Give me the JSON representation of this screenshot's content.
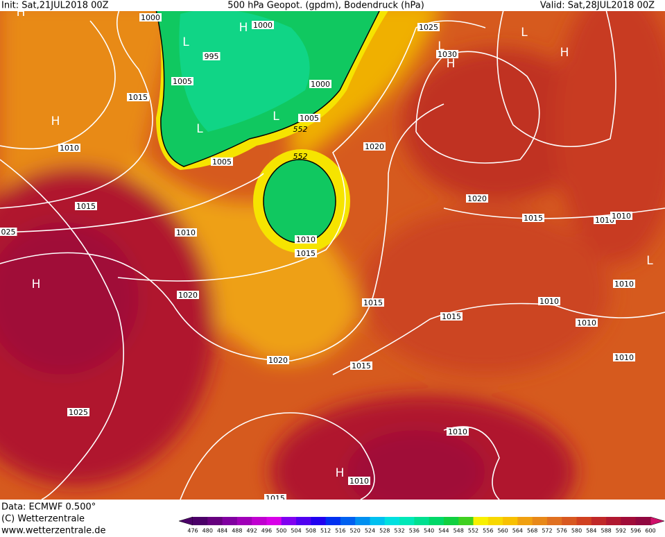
{
  "header": {
    "init": "Init: Sat,21JUL2018 00Z",
    "title": "500 hPa Geopot. (gpdm), Bodendruck (hPa)",
    "valid": "Valid: Sat,28JUL2018 00Z"
  },
  "map": {
    "isobar_labels": [
      "1000",
      "1000",
      "995",
      "1005",
      "1000",
      "1015",
      "1005",
      "1010",
      "1020",
      "1005",
      "1015",
      "1020",
      "1015",
      "1010",
      "1010",
      "1010",
      "025",
      "1010",
      "1015",
      "1015",
      "1020",
      "1010",
      "1010",
      "1015",
      "1010",
      "1020",
      "1015",
      "1010",
      "1025",
      "1010",
      "1010",
      "1030",
      "1025",
      "1015"
    ],
    "geopotential_labels": [
      "552",
      "552"
    ],
    "pressure_centers": [
      "H",
      "H",
      "L",
      "L",
      "L",
      "H",
      "H",
      "L",
      "H",
      "H",
      "L",
      "L",
      "H"
    ]
  },
  "footer": {
    "data": "Data: ECMWF   0.500°",
    "copyright": "(C) Wetterzentrale",
    "url": "www.wetterzentrale.de"
  },
  "colorbar": {
    "labels": [
      "476",
      "480",
      "484",
      "488",
      "492",
      "496",
      "500",
      "504",
      "508",
      "512",
      "516",
      "520",
      "524",
      "528",
      "532",
      "536",
      "540",
      "544",
      "548",
      "552",
      "556",
      "560",
      "564",
      "568",
      "572",
      "576",
      "580",
      "584",
      "588",
      "592",
      "596",
      "600"
    ],
    "colors": [
      "#4b0068",
      "#66007e",
      "#8000a0",
      "#a000b8",
      "#c000d0",
      "#d800e8",
      "#8000f0",
      "#5000f0",
      "#2000f0",
      "#0030f0",
      "#0060f0",
      "#0090f0",
      "#00c0f0",
      "#00e0e0",
      "#00e8b8",
      "#00e090",
      "#00d868",
      "#10d040",
      "#40d020",
      "#f8f000",
      "#f8d800",
      "#f8c000",
      "#f0a010",
      "#e88818",
      "#e07020",
      "#d85820",
      "#d04020",
      "#c02828",
      "#b01830",
      "#a00c38",
      "#900840"
    ]
  }
}
